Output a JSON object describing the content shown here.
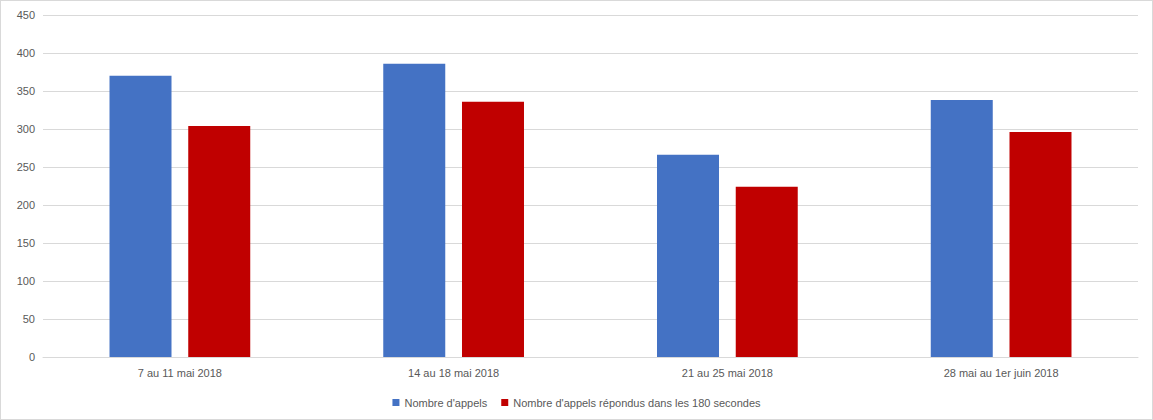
{
  "chart_data": {
    "type": "bar",
    "categories": [
      "7 au 11 mai 2018",
      "14 au 18 mai 2018",
      "21 au 25 mai 2018",
      "28 mai au 1er juin 2018"
    ],
    "series": [
      {
        "name": "Nombre d'appels",
        "color": "#4472c4",
        "values": [
          370,
          386,
          266,
          338
        ]
      },
      {
        "name": "Nombre d'appels répondus dans les 180 secondes",
        "color": "#c00000",
        "values": [
          304,
          336,
          224,
          296
        ]
      }
    ],
    "ylim": [
      0,
      450
    ],
    "yticks": [
      0,
      50,
      100,
      150,
      200,
      250,
      300,
      350,
      400,
      450
    ],
    "grid": true,
    "legend": "bottom"
  }
}
